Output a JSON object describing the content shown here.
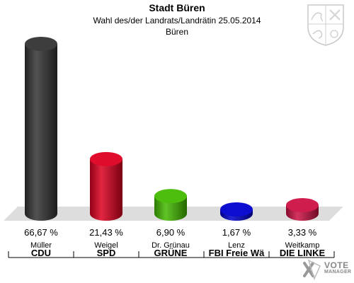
{
  "header": {
    "title": "Stadt Büren",
    "subtitle": "Wahl des/der Landrats/Landrätin 25.05.2014",
    "location": "Büren"
  },
  "branding": {
    "logo_line1": "VOTE",
    "logo_line2": "MANAGER",
    "crest_icon": "coat-of-arms-icon"
  },
  "chart_data": {
    "type": "bar",
    "categories": [
      "CDU",
      "SPD",
      "GRÜNE",
      "FBI Freie Wä",
      "DIE LINKE"
    ],
    "candidates": [
      "Müller",
      "Weigel",
      "Dr. Grünau",
      "Lenz",
      "Weitkamp"
    ],
    "values": [
      66.67,
      21.43,
      6.9,
      1.67,
      3.33
    ],
    "value_labels": [
      "66,67 %",
      "21,43 %",
      "6,90 %",
      "1,67 %",
      "3,33 %"
    ],
    "colors": [
      "#333333",
      "#dd0020",
      "#44bb00",
      "#0000cc",
      "#cc1144"
    ],
    "ylim": [
      0,
      66.67
    ],
    "grid": false,
    "legend": "none"
  }
}
